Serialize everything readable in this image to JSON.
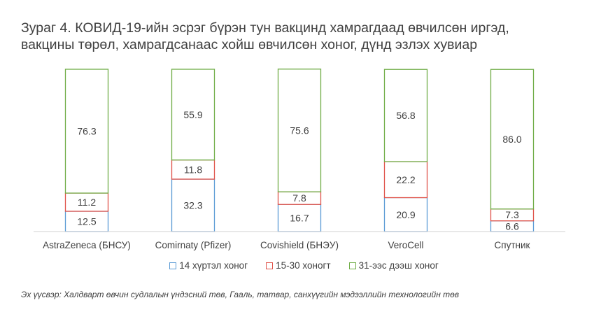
{
  "title_line1": "Зураг 4. КОВИД-19-ийн эсрэг бүрэн тун вакцинд  хамрагдаад өвчилсөн иргэд,",
  "title_line2": "вакцины төрөл, хамрагдсанаас хойш өвчилсөн хоног, дүнд эзлэх хувиар",
  "source": "Эх үүсвэр: Халдварт өвчин судлалын үндэсний төв, Гааль, татвар, санхүүгийн мэдээллийн технологийн төв",
  "colors": {
    "s1": "#5b9bd5",
    "s2": "#e0534a",
    "s3": "#70ad47",
    "axis": "#d0d0d0"
  },
  "chart_data": {
    "type": "bar",
    "stacked": true,
    "categories": [
      "AstraZeneca (БНСУ)",
      "Comirnaty (Pfizer)",
      "Covishield (БНЭУ)",
      "VeroCell",
      "Спутник"
    ],
    "series": [
      {
        "name": "14 хүртэл хоног",
        "values": [
          12.5,
          32.3,
          16.7,
          20.9,
          6.6
        ],
        "labels": [
          "12.5",
          "32.3",
          "16.7",
          "20.9",
          "6.6"
        ]
      },
      {
        "name": "15-30 хоногт",
        "values": [
          11.2,
          11.8,
          7.8,
          22.2,
          7.3
        ],
        "labels": [
          "11.2",
          "11.8",
          "7.8",
          "22.2",
          "7.3"
        ]
      },
      {
        "name": "31-ээс дээш хоног",
        "values": [
          76.3,
          55.9,
          75.6,
          56.8,
          86.0
        ],
        "labels": [
          "76.3",
          "55.9",
          "75.6",
          "56.8",
          "86.0"
        ]
      }
    ],
    "ylim": [
      0,
      100
    ],
    "legend_position": "bottom",
    "grid": false
  }
}
